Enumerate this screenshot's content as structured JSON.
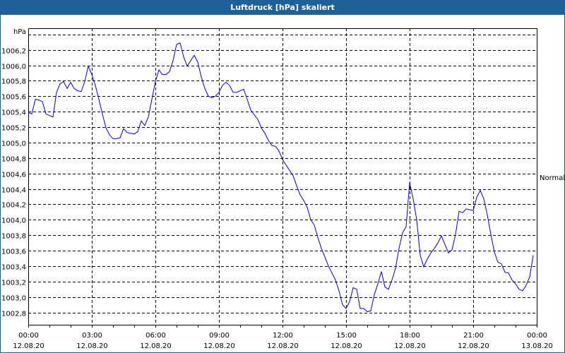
{
  "window": {
    "title": "Luftdruck [hPa] skaliert"
  },
  "chart_data": {
    "type": "line",
    "title": "Luftdruck [hPa] skaliert",
    "ylabel": "hPa",
    "xlabel": "",
    "ylim": [
      1002.64,
      1006.48
    ],
    "yticks": [
      1002.8,
      1003.0,
      1003.2,
      1003.4,
      1003.6,
      1003.8,
      1004.0,
      1004.2,
      1004.4,
      1004.6,
      1004.8,
      1005.0,
      1005.2,
      1005.4,
      1005.6,
      1005.8,
      1006.0,
      1006.2,
      1006.4
    ],
    "ytick_labels": [
      "1002,8",
      "1003,0",
      "1003,2",
      "1003,4",
      "1003,6",
      "1003,8",
      "1004,0",
      "1004,2",
      "1004,4",
      "1004,6",
      "1004,8",
      "1005,0",
      "1005,2",
      "1005,4",
      "1005,6",
      "1005,8",
      "1006,0",
      "1006,2",
      ""
    ],
    "xlim_hours": [
      0,
      24
    ],
    "xticks": [
      {
        "hour": 0,
        "time": "00:00",
        "date": "12.08.20"
      },
      {
        "hour": 3,
        "time": "03:00",
        "date": "12.08.20"
      },
      {
        "hour": 6,
        "time": "06:00",
        "date": "12.08.20"
      },
      {
        "hour": 9,
        "time": "09:00",
        "date": "12.08.20"
      },
      {
        "hour": 12,
        "time": "12:00",
        "date": "12.08.20"
      },
      {
        "hour": 15,
        "time": "15:00",
        "date": "12.08.20"
      },
      {
        "hour": 18,
        "time": "18:00",
        "date": "12.08.20"
      },
      {
        "hour": 21,
        "time": "21:00",
        "date": "12.08.20"
      },
      {
        "hour": 24,
        "time": "00:00",
        "date": "13.08.20"
      }
    ],
    "grid": true,
    "reference_label": {
      "text": "Normal",
      "value": 1004.55
    },
    "series": [
      {
        "name": "Luftdruck",
        "color": "#0000e0",
        "interval_minutes": 10,
        "values": [
          1005.39,
          1005.37,
          1005.56,
          1005.55,
          1005.53,
          1005.37,
          1005.35,
          1005.33,
          1005.65,
          1005.76,
          1005.79,
          1005.7,
          1005.78,
          1005.7,
          1005.67,
          1005.66,
          1005.79,
          1005.99,
          1005.88,
          1005.74,
          1005.56,
          1005.37,
          1005.19,
          1005.1,
          1005.05,
          1005.05,
          1005.06,
          1005.18,
          1005.13,
          1005.12,
          1005.11,
          1005.14,
          1005.28,
          1005.22,
          1005.33,
          1005.56,
          1005.79,
          1005.94,
          1005.88,
          1005.88,
          1005.92,
          1006.06,
          1006.27,
          1006.29,
          1006.11,
          1005.99,
          1006.06,
          1006.13,
          1006.04,
          1005.85,
          1005.7,
          1005.6,
          1005.58,
          1005.6,
          1005.65,
          1005.74,
          1005.78,
          1005.74,
          1005.65,
          1005.65,
          1005.67,
          1005.69,
          1005.56,
          1005.42,
          1005.36,
          1005.3,
          1005.19,
          1005.12,
          1005.03,
          1004.96,
          1004.95,
          1004.89,
          1004.78,
          1004.71,
          1004.64,
          1004.57,
          1004.44,
          1004.32,
          1004.25,
          1004.16,
          1004.0,
          1003.93,
          1003.77,
          1003.63,
          1003.52,
          1003.4,
          1003.31,
          1003.22,
          1003.08,
          1002.9,
          1002.85,
          1002.94,
          1003.12,
          1003.1,
          1002.85,
          1002.85,
          1002.81,
          1002.82,
          1003.03,
          1003.17,
          1003.33,
          1003.13,
          1003.1,
          1003.22,
          1003.37,
          1003.63,
          1003.83,
          1003.91,
          1004.48,
          1004.27,
          1004.0,
          1003.54,
          1003.39,
          1003.49,
          1003.57,
          1003.63,
          1003.7,
          1003.79,
          1003.68,
          1003.57,
          1003.61,
          1003.81,
          1004.11,
          1004.09,
          1004.14,
          1004.13,
          1004.12,
          1004.29,
          1004.38,
          1004.27,
          1004.06,
          1003.81,
          1003.58,
          1003.45,
          1003.43,
          1003.32,
          1003.31,
          1003.22,
          1003.17,
          1003.1,
          1003.08,
          1003.15,
          1003.26,
          1003.54
        ]
      }
    ]
  }
}
